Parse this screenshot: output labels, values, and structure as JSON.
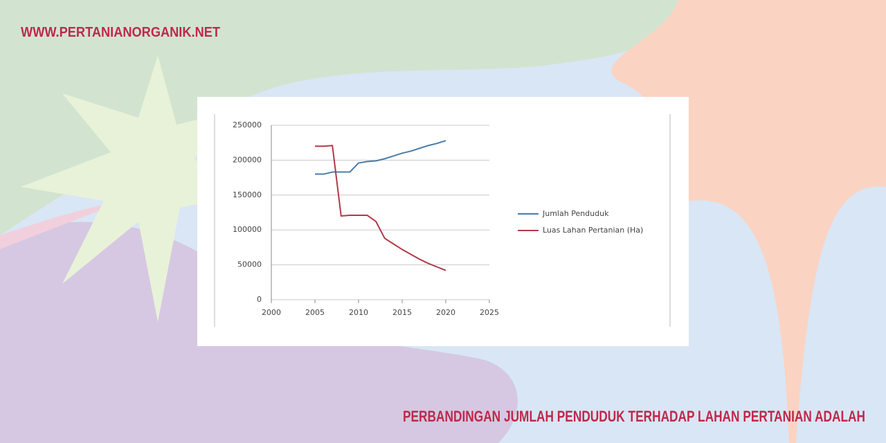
{
  "site": "WWW.PERTANIANORGANIK.NET",
  "headline": "PERBANDINGAN JUMLAH PENDUDUK TERHADAP LAHAN PERTANIAN ADALAH",
  "chart_data": {
    "type": "line",
    "x": [
      2005,
      2006,
      2007,
      2008,
      2009,
      2010,
      2011,
      2012,
      2013,
      2014,
      2015,
      2016,
      2017,
      2018,
      2019,
      2020
    ],
    "series": [
      {
        "name": "Jumlah Penduduk",
        "color": "#4a7ca8",
        "values": [
          180000,
          180000,
          183000,
          183000,
          183000,
          196000,
          198000,
          199000,
          202000,
          206000,
          210000,
          213000,
          217000,
          221000,
          224000,
          228000
        ]
      },
      {
        "name": "Luas Lahan Pertanian (Ha)",
        "color": "#b03a48",
        "values": [
          220000,
          220000,
          221000,
          120000,
          121000,
          121000,
          121000,
          112000,
          88000,
          80000,
          72000,
          65000,
          58000,
          52000,
          47000,
          42000
        ]
      }
    ],
    "xlim": [
      2000,
      2025
    ],
    "xticks": [
      2000,
      2005,
      2010,
      2015,
      2020,
      2025
    ],
    "ylim": [
      0,
      250000
    ],
    "yticks": [
      0,
      50000,
      100000,
      150000,
      200000,
      250000
    ],
    "grid": true,
    "legend": "right"
  }
}
